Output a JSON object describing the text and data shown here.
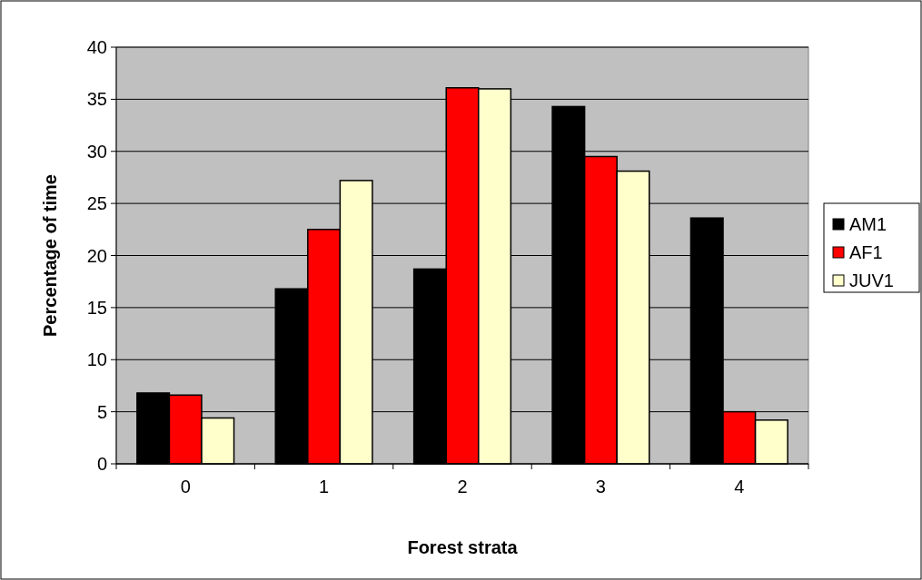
{
  "chart_data": {
    "type": "bar",
    "xlabel": "Forest strata",
    "ylabel": "Percentage of time",
    "categories": [
      "0",
      "1",
      "2",
      "3",
      "4"
    ],
    "series": [
      {
        "name": "AM1",
        "color": "#000000",
        "values": [
          6.8,
          16.8,
          18.7,
          34.3,
          23.6
        ]
      },
      {
        "name": "AF1",
        "color": "#ff0000",
        "values": [
          6.6,
          22.5,
          36.1,
          29.5,
          5.0
        ]
      },
      {
        "name": "JUV1",
        "color": "#ffffcc",
        "values": [
          4.4,
          27.2,
          36.0,
          28.1,
          4.2
        ]
      }
    ],
    "ylim": [
      0,
      40
    ],
    "yticks": [
      0,
      5,
      10,
      15,
      20,
      25,
      30,
      35,
      40
    ],
    "grid": "y",
    "legend": "right"
  }
}
